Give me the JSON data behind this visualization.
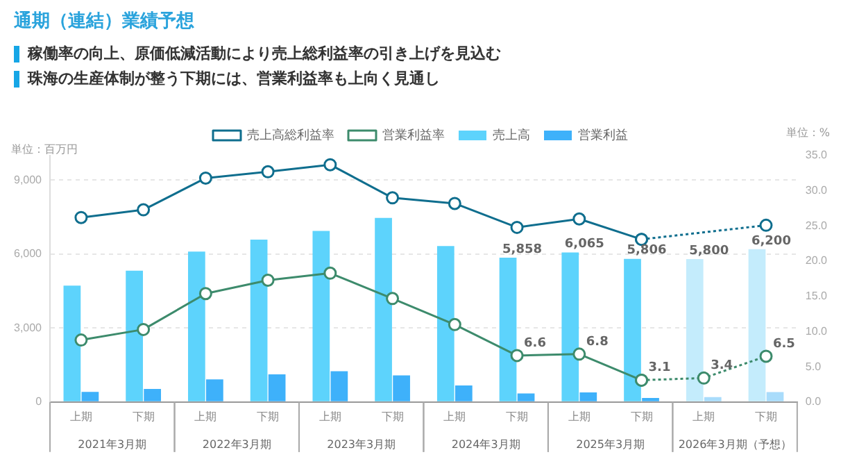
{
  "chart_data": {
    "type": "bar",
    "title": "通期（連結）業績予想",
    "subtitle": "稼働率の向上、原価低減活動により売上総利益率の引き上げを見込む",
    "ylabel": "単位：百万円",
    "y2label": "単位：%",
    "annotations": [
      "珠海の生産体制が整う下期には、営業利益率も上向く見通し",
      "2021年3月期",
      "2022年3月期",
      "2023年3月期",
      "2024年3月期",
      "2025年3月期",
      "2026年3月期（予想）"
    ],
    "categories": [
      "上期",
      "下期",
      "上期",
      "下期",
      "上期",
      "下期",
      "上期",
      "下期",
      "上期",
      "下期",
      "上期",
      "下期"
    ],
    "series": [
      {
        "name": "売上高",
        "color": "#5dd3fc",
        "colors": [
          "#5dd3fc",
          "#5dd3fc",
          "#5dd3fc",
          "#5dd3fc",
          "#5dd3fc",
          "#5dd3fc",
          "#5dd3fc",
          "#5dd3fc",
          "#5dd3fc",
          "#5dd3fc",
          "#c4ecfc",
          "#c4ecfc"
        ],
        "values": [
          4720,
          5330,
          6100,
          6590,
          6940,
          7470,
          6330,
          5858,
          6065,
          5806,
          5800,
          6200
        ],
        "value_labels": [
          null,
          null,
          null,
          null,
          null,
          null,
          null,
          "5,858",
          "6,065",
          "5,806",
          "5,800",
          "6,200"
        ]
      },
      {
        "name": "営業利益",
        "color": "#3eb1fa",
        "colors": [
          "#3eb1fa",
          "#3eb1fa",
          "#3eb1fa",
          "#3eb1fa",
          "#3eb1fa",
          "#3eb1fa",
          "#3eb1fa",
          "#3eb1fa",
          "#3eb1fa",
          "#3eb1fa",
          "#a9dcfb",
          "#a9dcfb"
        ],
        "values": [
          410,
          530,
          920,
          1120,
          1250,
          1080,
          670,
          350,
          390,
          160,
          200,
          400
        ]
      },
      {
        "name": "売上高総利益率",
        "type": "line",
        "axis": "y2",
        "color": "#0f6e8e",
        "marker": "circle",
        "line_style": "solid",
        "values": [
          26.2,
          27.3,
          31.8,
          32.7,
          33.7,
          29.0,
          28.2,
          24.8,
          26.0,
          23.1,
          null,
          null
        ]
      },
      {
        "type": "line",
        "axis": "y2",
        "color": "#0f6e8e",
        "marker": "circle",
        "line_style": "dotted",
        "values": [
          null,
          null,
          null,
          null,
          null,
          null,
          null,
          null,
          null,
          23.1,
          null,
          25.1
        ]
      },
      {
        "name": "営業利益率",
        "type": "line",
        "axis": "y2",
        "color": "#3d8b6c",
        "marker": "circle",
        "line_style": "solid",
        "values": [
          8.8,
          10.3,
          15.4,
          17.3,
          18.3,
          14.7,
          11.0,
          6.6,
          6.8,
          3.1,
          null,
          null
        ],
        "value_labels": [
          null,
          null,
          null,
          null,
          null,
          null,
          null,
          "6.6",
          "6.8",
          "3.1",
          null,
          null
        ]
      },
      {
        "type": "line",
        "axis": "y2",
        "color": "#3d8b6c",
        "marker": "circle",
        "line_style": "dotted",
        "values": [
          null,
          null,
          null,
          null,
          null,
          null,
          null,
          null,
          null,
          3.1,
          3.4,
          6.5
        ],
        "value_labels": [
          null,
          null,
          null,
          null,
          null,
          null,
          null,
          null,
          null,
          null,
          "3.4",
          "6.5"
        ]
      }
    ],
    "ylim": [
      0,
      10000
    ],
    "yticks": [
      0,
      {
        "value": 3000,
        "label": "3,000"
      },
      {
        "value": 6000,
        "label": "6,000"
      },
      {
        "value": 9000,
        "label": "9,000"
      }
    ],
    "y2lim": [
      0,
      35
    ],
    "y2ticks": [
      {
        "value": 0,
        "label": "0.0"
      },
      {
        "value": 5,
        "label": "5.0"
      },
      {
        "value": 10,
        "label": "10.0"
      },
      {
        "value": 15,
        "label": "15.0"
      },
      {
        "value": 20,
        "label": "20.0"
      },
      {
        "value": 25,
        "label": "25.0"
      },
      {
        "value": 30,
        "label": "30.0"
      },
      {
        "value": 35,
        "label": "35.0"
      }
    ],
    "grid": "y",
    "legend": "top"
  }
}
